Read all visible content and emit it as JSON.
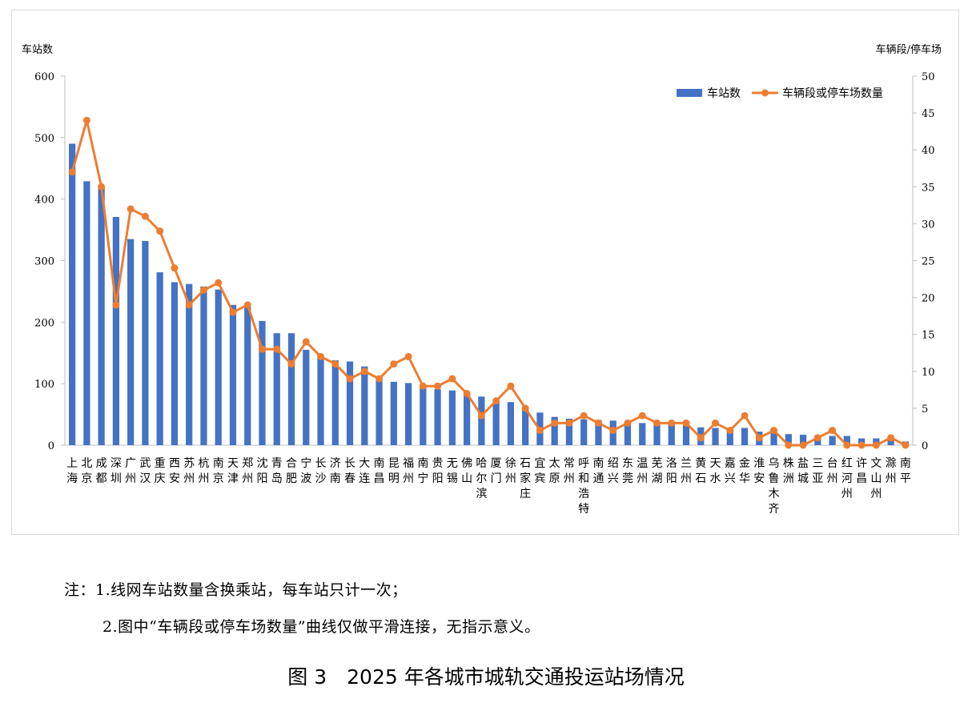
{
  "chart_data": {
    "type": "bar+line",
    "y_left_label": "车站数",
    "y_right_label": "车辆段/停车场",
    "ylim_left": [
      0,
      600
    ],
    "yticks_left": [
      "0",
      "100",
      "200",
      "300",
      "400",
      "500",
      "600"
    ],
    "ylim_right": [
      0,
      50
    ],
    "yticks_right": [
      "0",
      "5",
      "10",
      "15",
      "20",
      "25",
      "30",
      "35",
      "40",
      "45",
      "50"
    ],
    "legend_position": "top-right",
    "grid": false,
    "categories": [
      "上海",
      "北京",
      "成都",
      "深圳",
      "广州",
      "武汉",
      "重庆",
      "西安",
      "苏州",
      "杭州",
      "南京",
      "天津",
      "郑州",
      "沈阳",
      "青岛",
      "合肥",
      "宁波",
      "长沙",
      "济南",
      "长春",
      "大连",
      "南昌",
      "昆明",
      "福州",
      "南宁",
      "贵阳",
      "无锡",
      "佛山",
      "哈尔滨",
      "厦门",
      "徐州",
      "石家庄",
      "宜宾",
      "太原",
      "常州",
      "呼和浩特",
      "南通",
      "绍兴",
      "东莞",
      "温州",
      "芜湖",
      "洛阳",
      "兰州",
      "黄石",
      "天水",
      "嘉兴",
      "金华",
      "淮安",
      "乌鲁木齐",
      "株洲",
      "盐城",
      "三亚",
      "台州",
      "红河州",
      "许昌",
      "文山州",
      "滁州",
      "南平"
    ],
    "series": [
      {
        "name": "车站数",
        "type": "bar",
        "axis": "left",
        "color": "#4472C4",
        "values": [
          490,
          429,
          418,
          371,
          335,
          332,
          281,
          265,
          262,
          258,
          253,
          228,
          225,
          202,
          182,
          182,
          155,
          142,
          138,
          136,
          128,
          110,
          103,
          101,
          93,
          91,
          89,
          84,
          79,
          70,
          70,
          58,
          53,
          46,
          43,
          42,
          41,
          40,
          38,
          36,
          35,
          34,
          33,
          29,
          28,
          28,
          28,
          22,
          21,
          18,
          17,
          16,
          15,
          15,
          11,
          11,
          10,
          6
        ]
      },
      {
        "name": "车辆段或停车场数量",
        "type": "line",
        "axis": "right",
        "color": "#ED7D31",
        "values": [
          37,
          44,
          35,
          19,
          32,
          31,
          29,
          24,
          19,
          21,
          22,
          18,
          19,
          13,
          13,
          11,
          14,
          12,
          11,
          9,
          10,
          9,
          11,
          12,
          8,
          8,
          9,
          7,
          4,
          6,
          8,
          5,
          2,
          3,
          3,
          4,
          3,
          2,
          3,
          4,
          3,
          3,
          3,
          1,
          3,
          2,
          4,
          1,
          2,
          0,
          0,
          1,
          2,
          0,
          0,
          0,
          1,
          0
        ]
      }
    ]
  },
  "notes": {
    "line1": "注：1.线网车站数量含换乘站，每车站只计一次；",
    "line2": "2.图中“车辆段或停车场数量”曲线仅做平滑连接，无指示意义。"
  },
  "caption": "图 3　2025 年各城市城轨交通投运站场情况"
}
